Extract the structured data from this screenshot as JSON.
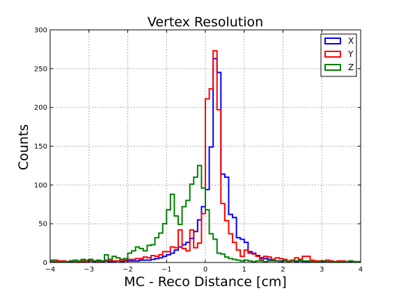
{
  "chart_data": {
    "type": "histogram",
    "title": "Vertex Resolution",
    "xlabel": "MC - Reco Distance [cm]",
    "ylabel": "Counts",
    "xlim": [
      -4,
      4
    ],
    "ylim": [
      0,
      300
    ],
    "xticks": [
      -4,
      -3,
      -2,
      -1,
      0,
      1,
      2,
      3,
      4
    ],
    "yticks": [
      0,
      50,
      100,
      150,
      200,
      250,
      300
    ],
    "grid": true,
    "legend_position": "top-right",
    "bin_edges_range": [
      -4,
      4
    ],
    "bin_width": 0.1,
    "series": [
      {
        "name": "X",
        "color": "#0000ff",
        "values": [
          1,
          1,
          1,
          1,
          1,
          1,
          1,
          1,
          1,
          1,
          2,
          1,
          2,
          1,
          2,
          1,
          1,
          2,
          1,
          2,
          2,
          2,
          2,
          3,
          3,
          3,
          4,
          5,
          6,
          8,
          10,
          12,
          16,
          20,
          23,
          26,
          31,
          40,
          55,
          72,
          94,
          149,
          263,
          245,
          114,
          110,
          62,
          58,
          32,
          30,
          26,
          14,
          12,
          9,
          6,
          5,
          4,
          3,
          2,
          2,
          2,
          2,
          2,
          1,
          2,
          1,
          1,
          1,
          1,
          1,
          1,
          1,
          1,
          1,
          1,
          1,
          1,
          1,
          1,
          1
        ]
      },
      {
        "name": "Y",
        "color": "#ff0000",
        "values": [
          1,
          3,
          2,
          2,
          1,
          2,
          1,
          1,
          2,
          1,
          2,
          2,
          1,
          2,
          3,
          3,
          2,
          2,
          3,
          3,
          4,
          4,
          5,
          5,
          7,
          6,
          9,
          8,
          10,
          14,
          14,
          20,
          19,
          42,
          18,
          15,
          42,
          19,
          25,
          63,
          211,
          224,
          273,
          197,
          76,
          54,
          37,
          26,
          16,
          8,
          16,
          12,
          11,
          8,
          4,
          8,
          7,
          4,
          6,
          5,
          4,
          2,
          3,
          6,
          4,
          8,
          8,
          3,
          2,
          2,
          2,
          3,
          2,
          1,
          2,
          2,
          1,
          2,
          1,
          1
        ]
      },
      {
        "name": "Z",
        "color": "#007f00",
        "values": [
          3,
          1,
          1,
          1,
          1,
          2,
          3,
          2,
          4,
          3,
          4,
          2,
          3,
          2,
          10,
          4,
          8,
          6,
          4,
          5,
          12,
          15,
          20,
          18,
          15,
          22,
          23,
          32,
          38,
          50,
          68,
          88,
          60,
          49,
          72,
          80,
          101,
          110,
          125,
          96,
          68,
          37,
          30,
          12,
          11,
          7,
          5,
          4,
          3,
          2,
          3,
          2,
          1,
          2,
          2,
          1,
          2,
          2,
          2,
          1,
          2,
          1,
          2,
          2,
          3,
          2,
          2,
          1,
          1,
          1,
          2,
          1,
          1,
          1,
          1,
          1,
          1,
          2,
          1,
          1
        ]
      }
    ]
  }
}
